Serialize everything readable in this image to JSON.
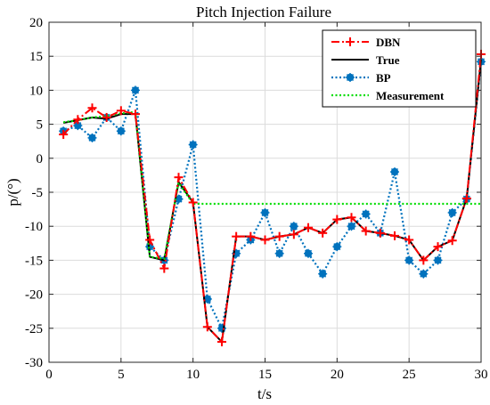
{
  "chart_data": {
    "type": "line",
    "title": "Pitch Injection Failure",
    "xlabel": "t/s",
    "ylabel": "p/(°)",
    "xlim": [
      0,
      30
    ],
    "ylim": [
      -30,
      20
    ],
    "xticks": [
      0,
      5,
      10,
      15,
      20,
      25,
      30
    ],
    "yticks": [
      -30,
      -25,
      -20,
      -15,
      -10,
      -5,
      0,
      5,
      10,
      15,
      20
    ],
    "grid": true,
    "legend_position": "top-right",
    "series": [
      {
        "name": "DBN",
        "color": "#ff0000",
        "line_style": "dash-dot",
        "marker": "plus",
        "x": [
          1,
          2,
          3,
          4,
          5,
          6,
          7,
          8,
          9,
          10,
          11,
          12,
          13,
          14,
          15,
          16,
          17,
          18,
          19,
          20,
          21,
          22,
          23,
          24,
          25,
          26,
          27,
          28,
          29,
          30
        ],
        "values": [
          3.5,
          5.7,
          7.4,
          6.0,
          7.0,
          6.5,
          -12.0,
          -16.2,
          -2.8,
          -6.5,
          -24.8,
          -27.0,
          -11.5,
          -11.5,
          -12.0,
          -11.5,
          -11.2,
          -10.2,
          -11.0,
          -9.0,
          -8.7,
          -10.7,
          -11.0,
          -11.4,
          -12.0,
          -15.0,
          -13.0,
          -12.1,
          -5.9,
          15.3
        ]
      },
      {
        "name": "True",
        "color": "#000000",
        "line_style": "solid",
        "marker": "none",
        "x": [
          1,
          2,
          3,
          4,
          5,
          6,
          7,
          8,
          9,
          10,
          11,
          12,
          13,
          14,
          15,
          16,
          17,
          18,
          19,
          20,
          21,
          22,
          23,
          24,
          25,
          26,
          27,
          28,
          29,
          30
        ],
        "values": [
          5.2,
          5.6,
          6.0,
          5.8,
          6.5,
          6.5,
          -14.5,
          -15.0,
          -3.5,
          -6.5,
          -24.8,
          -27.0,
          -11.5,
          -11.5,
          -12.0,
          -11.5,
          -11.2,
          -10.2,
          -11.0,
          -9.0,
          -8.7,
          -10.7,
          -11.0,
          -11.4,
          -12.0,
          -15.0,
          -13.0,
          -12.1,
          -5.9,
          14.5
        ]
      },
      {
        "name": "BP",
        "color": "#0072bd",
        "line_style": "dotted",
        "marker": "asterisk",
        "x": [
          1,
          2,
          3,
          4,
          5,
          6,
          7,
          8,
          9,
          10,
          11,
          12,
          13,
          14,
          15,
          16,
          17,
          18,
          19,
          20,
          21,
          22,
          23,
          24,
          25,
          26,
          27,
          28,
          29,
          30
        ],
        "values": [
          4.0,
          4.8,
          3.0,
          6.0,
          4.0,
          10.0,
          -13.0,
          -15.0,
          -6.0,
          2.0,
          -20.7,
          -25.0,
          -14.0,
          -12.0,
          -8.0,
          -14.0,
          -10.0,
          -14.0,
          -17.0,
          -13.0,
          -10.0,
          -8.2,
          -11.0,
          -2.0,
          -15.0,
          -17.0,
          -15.0,
          -8.0,
          -6.0,
          14.2
        ]
      },
      {
        "name": "Measurement",
        "color": "#00dd00",
        "line_style": "dotted",
        "marker": "none",
        "x": [
          1,
          2,
          3,
          4,
          5,
          6,
          7,
          8,
          9,
          10,
          30
        ],
        "values": [
          5.3,
          5.6,
          6.0,
          6.2,
          6.6,
          6.8,
          -14.5,
          -14.8,
          -3.6,
          -6.7,
          -6.7
        ]
      }
    ]
  }
}
